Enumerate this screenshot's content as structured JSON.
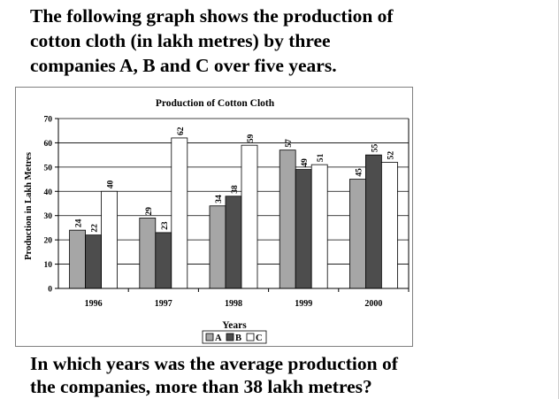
{
  "question": {
    "intro_line1": "The following graph shows the production of",
    "intro_line2": "cotton cloth (in lakh metres) by three",
    "intro_line3": "companies A, B and C over five years.",
    "body_line1": "In which years was the average production of",
    "body_line2": "the companies, more than 38 lakh metres?"
  },
  "chart_data": {
    "type": "bar",
    "title": "Production of Cotton Cloth",
    "xlabel": "Years",
    "ylabel": "Production in Lakh Metres",
    "categories": [
      "1996",
      "1997",
      "1998",
      "1999",
      "2000"
    ],
    "series": [
      {
        "name": "A",
        "values": [
          24,
          29,
          34,
          57,
          45
        ],
        "color": "#a6a6a6"
      },
      {
        "name": "B",
        "values": [
          22,
          23,
          38,
          49,
          55
        ],
        "color": "#4d4d4d"
      },
      {
        "name": "C",
        "values": [
          40,
          62,
          59,
          51,
          52
        ],
        "color": "#ffffff"
      }
    ],
    "ylim": [
      0,
      70
    ],
    "yticks": [
      "0",
      "10",
      "20",
      "30",
      "40",
      "50",
      "60",
      "70"
    ],
    "grid": true,
    "legend_position": "bottom-center",
    "data_labels": true
  }
}
